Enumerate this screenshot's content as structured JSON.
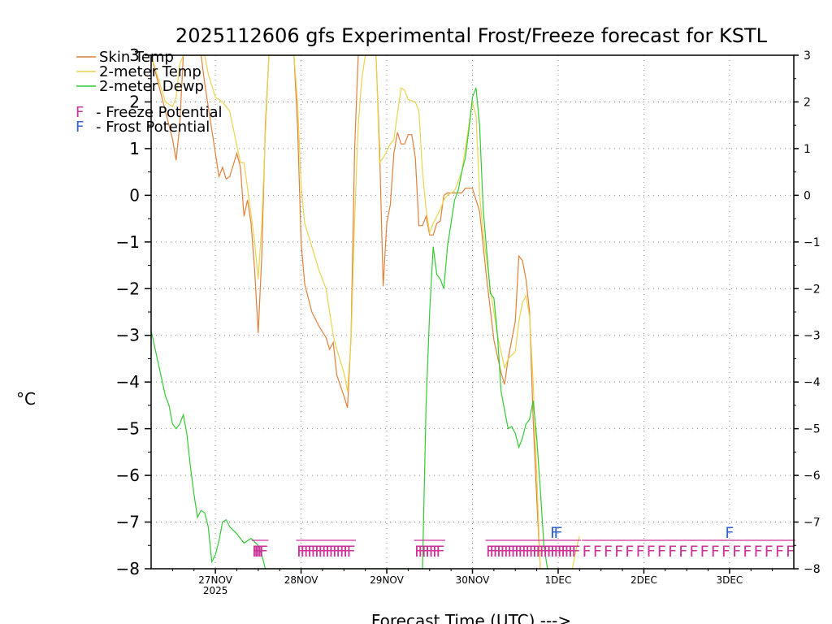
{
  "chart_data": {
    "type": "line",
    "title": "2025112606 gfs Experimental Frost/Freeze forecast for KSTL",
    "xlabel": "Forecast Time (UTC) --->",
    "ylabel": "°C",
    "ylim": [
      -8,
      3
    ],
    "xlim_hours": [
      0,
      180
    ],
    "yticks": [
      -8,
      -7,
      -6,
      -5,
      -4,
      -3,
      -2,
      -1,
      0,
      1,
      2,
      3
    ],
    "x_ticks": [
      {
        "hour": 18,
        "label": "27NOV",
        "sublabel": "2025"
      },
      {
        "hour": 42,
        "label": "28NOV",
        "sublabel": ""
      },
      {
        "hour": 66,
        "label": "29NOV",
        "sublabel": ""
      },
      {
        "hour": 90,
        "label": "30NOV",
        "sublabel": ""
      },
      {
        "hour": 114,
        "label": "1DEC",
        "sublabel": ""
      },
      {
        "hour": 138,
        "label": "2DEC",
        "sublabel": ""
      },
      {
        "hour": 162,
        "label": "3DEC",
        "sublabel": ""
      }
    ],
    "grid": true,
    "legend_position": "top-left",
    "series": [
      {
        "name": "Skin Temp",
        "color": "#e0803a",
        "points": [
          [
            0,
            3
          ],
          [
            3,
            2.1
          ],
          [
            6,
            1.2
          ],
          [
            7,
            0.75
          ],
          [
            8,
            1.5
          ],
          [
            9,
            3
          ],
          [
            14,
            3
          ],
          [
            15,
            2.4
          ],
          [
            19,
            0.4
          ],
          [
            20,
            0.6
          ],
          [
            21,
            0.35
          ],
          [
            22,
            0.4
          ],
          [
            24,
            0.9
          ],
          [
            25,
            0.6
          ],
          [
            26,
            -0.45
          ],
          [
            27,
            -0.1
          ],
          [
            28,
            -0.6
          ],
          [
            29,
            -1.6
          ],
          [
            30,
            -2.95
          ],
          [
            31,
            -1.3
          ],
          [
            32,
            1.5
          ],
          [
            33,
            3
          ],
          [
            40,
            3
          ],
          [
            41,
            1.5
          ],
          [
            42,
            -1
          ],
          [
            43,
            -1.9
          ],
          [
            45,
            -2.5
          ],
          [
            47,
            -2.8
          ],
          [
            49,
            -3.05
          ],
          [
            50,
            -3.3
          ],
          [
            51,
            -3.15
          ],
          [
            52,
            -3.85
          ],
          [
            54,
            -4.3
          ],
          [
            55,
            -4.55
          ],
          [
            56,
            -3
          ],
          [
            57,
            1
          ],
          [
            58,
            3
          ],
          [
            63,
            3
          ],
          [
            64,
            1
          ],
          [
            65,
            -1.95
          ],
          [
            66,
            -0.6
          ],
          [
            67,
            -0.2
          ],
          [
            68,
            0.9
          ],
          [
            69,
            1.35
          ],
          [
            70,
            1.1
          ],
          [
            71,
            1.1
          ],
          [
            72,
            1.3
          ],
          [
            73,
            1.3
          ],
          [
            74,
            0.8
          ],
          [
            75,
            -0.65
          ],
          [
            76,
            -0.65
          ],
          [
            77,
            -0.45
          ],
          [
            78,
            -0.85
          ],
          [
            79,
            -0.85
          ],
          [
            80,
            -0.6
          ],
          [
            81,
            -0.55
          ],
          [
            82,
            0
          ],
          [
            83,
            0.05
          ],
          [
            85,
            0.05
          ],
          [
            87,
            0.05
          ],
          [
            88,
            0.15
          ],
          [
            90,
            0.15
          ],
          [
            92,
            -0.35
          ],
          [
            94,
            -1.8
          ],
          [
            96,
            -3.1
          ],
          [
            98,
            -3.8
          ],
          [
            99,
            -4.05
          ],
          [
            100,
            -3.5
          ],
          [
            102,
            -2.7
          ],
          [
            103,
            -1.3
          ],
          [
            104,
            -1.4
          ],
          [
            105,
            -1.8
          ],
          [
            106,
            -2.5
          ],
          [
            107,
            -4.8
          ],
          [
            108,
            -6.5
          ],
          [
            109,
            -8
          ]
        ]
      },
      {
        "name": "2-meter Temp",
        "color": "#e8d44d",
        "points": [
          [
            0,
            3
          ],
          [
            2,
            2.5
          ],
          [
            4,
            2
          ],
          [
            6,
            1.9
          ],
          [
            7,
            2.1
          ],
          [
            8,
            2.8
          ],
          [
            9,
            3
          ],
          [
            15,
            3
          ],
          [
            16,
            2.6
          ],
          [
            18,
            2.1
          ],
          [
            20,
            2
          ],
          [
            22,
            1.8
          ],
          [
            25,
            0.7
          ],
          [
            26,
            0.7
          ],
          [
            28,
            -0.4
          ],
          [
            29,
            -1
          ],
          [
            30,
            -1.8
          ],
          [
            31,
            -0.6
          ],
          [
            32,
            1.3
          ],
          [
            33,
            3
          ],
          [
            40,
            3
          ],
          [
            41,
            2
          ],
          [
            42,
            0.2
          ],
          [
            43,
            -0.6
          ],
          [
            45,
            -1.1
          ],
          [
            47,
            -1.6
          ],
          [
            49,
            -2
          ],
          [
            50,
            -2.5
          ],
          [
            51,
            -3
          ],
          [
            52,
            -3.3
          ],
          [
            54,
            -3.8
          ],
          [
            55,
            -4.2
          ],
          [
            56,
            -3.1
          ],
          [
            57,
            -0.5
          ],
          [
            58,
            1.5
          ],
          [
            59,
            2.5
          ],
          [
            60,
            3
          ],
          [
            63,
            3
          ],
          [
            64,
            0.7
          ],
          [
            65,
            0.8
          ],
          [
            67,
            1.1
          ],
          [
            68,
            1.2
          ],
          [
            70,
            2.3
          ],
          [
            71,
            2.25
          ],
          [
            72,
            2.05
          ],
          [
            74,
            2
          ],
          [
            75,
            1.8
          ],
          [
            76,
            0.5
          ],
          [
            77,
            -0.3
          ],
          [
            78,
            -0.8
          ],
          [
            79,
            -0.6
          ],
          [
            80,
            -0.45
          ],
          [
            81,
            -0.3
          ],
          [
            82,
            -0.1
          ],
          [
            83,
            0
          ],
          [
            85,
            0.1
          ],
          [
            87,
            0.5
          ],
          [
            89,
            1.5
          ],
          [
            90,
            2
          ],
          [
            91,
            1.7
          ],
          [
            92,
            0
          ],
          [
            93,
            -0.8
          ],
          [
            95,
            -2
          ],
          [
            97,
            -3
          ],
          [
            99,
            -3.7
          ],
          [
            100,
            -3.5
          ],
          [
            102,
            -3.35
          ],
          [
            103,
            -2.7
          ],
          [
            104,
            -2.3
          ],
          [
            105,
            -2.15
          ],
          [
            106,
            -2.6
          ],
          [
            107,
            -4
          ],
          [
            108,
            -6
          ],
          [
            109,
            -8
          ],
          [
            118,
            -8
          ],
          [
            119,
            -7.6
          ],
          [
            120,
            -7.3
          ]
        ]
      },
      {
        "name": "2-meter Dewp",
        "color": "#33cc33",
        "points": [
          [
            0,
            -2.9
          ],
          [
            2,
            -3.6
          ],
          [
            4,
            -4.3
          ],
          [
            5,
            -4.5
          ],
          [
            6,
            -4.9
          ],
          [
            7,
            -5
          ],
          [
            8,
            -4.9
          ],
          [
            9,
            -4.7
          ],
          [
            10,
            -5.1
          ],
          [
            11,
            -5.8
          ],
          [
            12,
            -6.4
          ],
          [
            13,
            -6.9
          ],
          [
            14,
            -6.75
          ],
          [
            15,
            -6.8
          ],
          [
            16,
            -7.1
          ],
          [
            17,
            -7.85
          ],
          [
            18,
            -7.7
          ],
          [
            19,
            -7.4
          ],
          [
            20,
            -7
          ],
          [
            21,
            -6.95
          ],
          [
            22,
            -7.1
          ],
          [
            24,
            -7.25
          ],
          [
            26,
            -7.45
          ],
          [
            28,
            -7.35
          ],
          [
            30,
            -7.5
          ],
          [
            31,
            -7.7
          ],
          [
            32,
            -8
          ],
          [
            76,
            -8
          ],
          [
            77,
            -4.5
          ],
          [
            78,
            -2.5
          ],
          [
            79,
            -1.1
          ],
          [
            80,
            -1.7
          ],
          [
            81,
            -1.8
          ],
          [
            82,
            -2
          ],
          [
            83,
            -1.1
          ],
          [
            84,
            -0.6
          ],
          [
            85,
            -0.1
          ],
          [
            86,
            0.1
          ],
          [
            87,
            0.5
          ],
          [
            88,
            0.8
          ],
          [
            89,
            1.4
          ],
          [
            90,
            2.1
          ],
          [
            91,
            2.3
          ],
          [
            92,
            1.5
          ],
          [
            93,
            -0.3
          ],
          [
            94,
            -1.2
          ],
          [
            95,
            -2.1
          ],
          [
            96,
            -2.2
          ],
          [
            97,
            -3
          ],
          [
            98,
            -4.2
          ],
          [
            99,
            -4.6
          ],
          [
            100,
            -5
          ],
          [
            101,
            -4.95
          ],
          [
            102,
            -5.1
          ],
          [
            103,
            -5.4
          ],
          [
            104,
            -5.2
          ],
          [
            105,
            -4.9
          ],
          [
            106,
            -4.8
          ],
          [
            107,
            -4.4
          ],
          [
            108,
            -5.2
          ],
          [
            109,
            -6.3
          ],
          [
            110,
            -7.5
          ],
          [
            111,
            -8
          ]
        ]
      }
    ],
    "potential_flags": [
      {
        "type": "Freeze",
        "color": "#cc3399",
        "char": "F",
        "level": -7.6,
        "hours": [
          29.5,
          30,
          30.5,
          31,
          31.5
        ]
      },
      {
        "type": "Freeze",
        "color": "#cc3399",
        "char": "F",
        "level": -7.6,
        "hours": [
          42,
          43,
          44,
          45,
          46,
          47,
          48,
          49,
          50,
          51,
          52,
          53,
          54,
          55,
          56
        ]
      },
      {
        "type": "Freeze",
        "color": "#cc3399",
        "char": "F",
        "level": -7.6,
        "hours": [
          75,
          76,
          77,
          78,
          79,
          80,
          81
        ]
      },
      {
        "type": "Freeze",
        "color": "#cc3399",
        "char": "F",
        "level": -7.6,
        "hours": [
          95,
          96,
          97,
          98,
          99,
          100,
          101,
          102,
          103,
          104,
          105,
          106,
          107,
          108,
          109,
          110,
          111,
          112,
          113,
          114,
          115,
          116,
          117,
          118,
          119
        ]
      },
      {
        "type": "Freeze",
        "color": "#cc3399",
        "char": "F",
        "level": -7.6,
        "hours": [
          122,
          125,
          128,
          131,
          134,
          137,
          140,
          143,
          146,
          149,
          152,
          155,
          158,
          161,
          164,
          167,
          170,
          173,
          176,
          179
        ]
      },
      {
        "type": "Frost",
        "color": "#3366cc",
        "char": "F",
        "level": -7.2,
        "hours": [
          113,
          114
        ]
      },
      {
        "type": "Frost",
        "color": "#3366cc",
        "char": "F",
        "level": -7.2,
        "hours": [
          162
        ]
      }
    ],
    "legend": [
      {
        "kind": "line",
        "label": "Skin Temp",
        "color": "#e0803a"
      },
      {
        "kind": "line",
        "label": "2-meter Temp",
        "color": "#e8d44d"
      },
      {
        "kind": "line",
        "label": "2-meter Dewp",
        "color": "#33cc33"
      },
      {
        "kind": "flag",
        "char": "F",
        "label": "- Freeze Potential",
        "color": "#cc3399"
      },
      {
        "kind": "flag",
        "char": "F",
        "label": "- Frost Potential",
        "color": "#3366cc"
      }
    ]
  }
}
